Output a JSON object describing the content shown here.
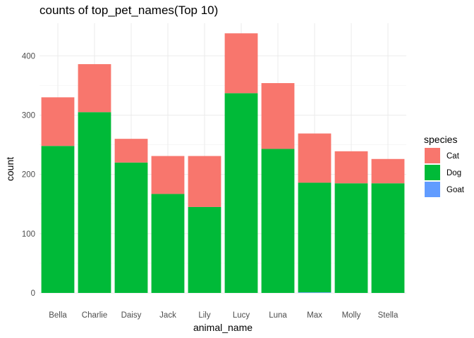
{
  "chart_data": {
    "type": "bar",
    "stacked": true,
    "title": "counts of top_pet_names(Top 10)",
    "xlabel": "animal_name",
    "ylabel": "count",
    "categories": [
      "Bella",
      "Charlie",
      "Daisy",
      "Jack",
      "Lily",
      "Lucy",
      "Luna",
      "Max",
      "Molly",
      "Stella"
    ],
    "series": [
      {
        "name": "Goat",
        "color": "#619CFF",
        "values": [
          0,
          0,
          0,
          0,
          0,
          0,
          0,
          1,
          0,
          0
        ]
      },
      {
        "name": "Dog",
        "color": "#00BA38",
        "values": [
          248,
          305,
          220,
          167,
          145,
          337,
          243,
          185,
          185,
          185
        ]
      },
      {
        "name": "Cat",
        "color": "#F8766D",
        "values": [
          82,
          81,
          40,
          64,
          86,
          101,
          111,
          83,
          54,
          41
        ]
      }
    ],
    "ylim": [
      0,
      455
    ],
    "yticks": [
      0,
      100,
      200,
      300,
      400
    ],
    "grid": true,
    "legend": {
      "title": "species",
      "position": "right",
      "entries": [
        {
          "label": "Cat",
          "color": "#F8766D"
        },
        {
          "label": "Dog",
          "color": "#00BA38"
        },
        {
          "label": "Goat",
          "color": "#619CFF"
        }
      ]
    }
  }
}
